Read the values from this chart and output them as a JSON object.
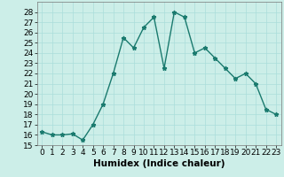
{
  "title": "",
  "xlabel": "Humidex (Indice chaleur)",
  "x": [
    0,
    1,
    2,
    3,
    4,
    5,
    6,
    7,
    8,
    9,
    10,
    11,
    12,
    13,
    14,
    15,
    16,
    17,
    18,
    19,
    20,
    21,
    22,
    23
  ],
  "y": [
    16.3,
    16.0,
    16.0,
    16.1,
    15.5,
    17.0,
    19.0,
    22.0,
    25.5,
    24.5,
    26.5,
    27.5,
    22.5,
    28.0,
    27.5,
    24.0,
    24.5,
    23.5,
    22.5,
    21.5,
    22.0,
    21.0,
    18.5,
    18.0
  ],
  "line_color": "#1a7a6e",
  "marker": "*",
  "markersize": 3.5,
  "linewidth": 1.0,
  "bg_color": "#cceee8",
  "grid_color": "#aaddda",
  "ylim": [
    15,
    29
  ],
  "xlim": [
    -0.5,
    23.5
  ],
  "yticks": [
    15,
    16,
    17,
    18,
    19,
    20,
    21,
    22,
    23,
    24,
    25,
    26,
    27,
    28
  ],
  "xticks": [
    0,
    1,
    2,
    3,
    4,
    5,
    6,
    7,
    8,
    9,
    10,
    11,
    12,
    13,
    14,
    15,
    16,
    17,
    18,
    19,
    20,
    21,
    22,
    23
  ],
  "xlabel_fontsize": 7.5,
  "tick_fontsize": 6.5
}
